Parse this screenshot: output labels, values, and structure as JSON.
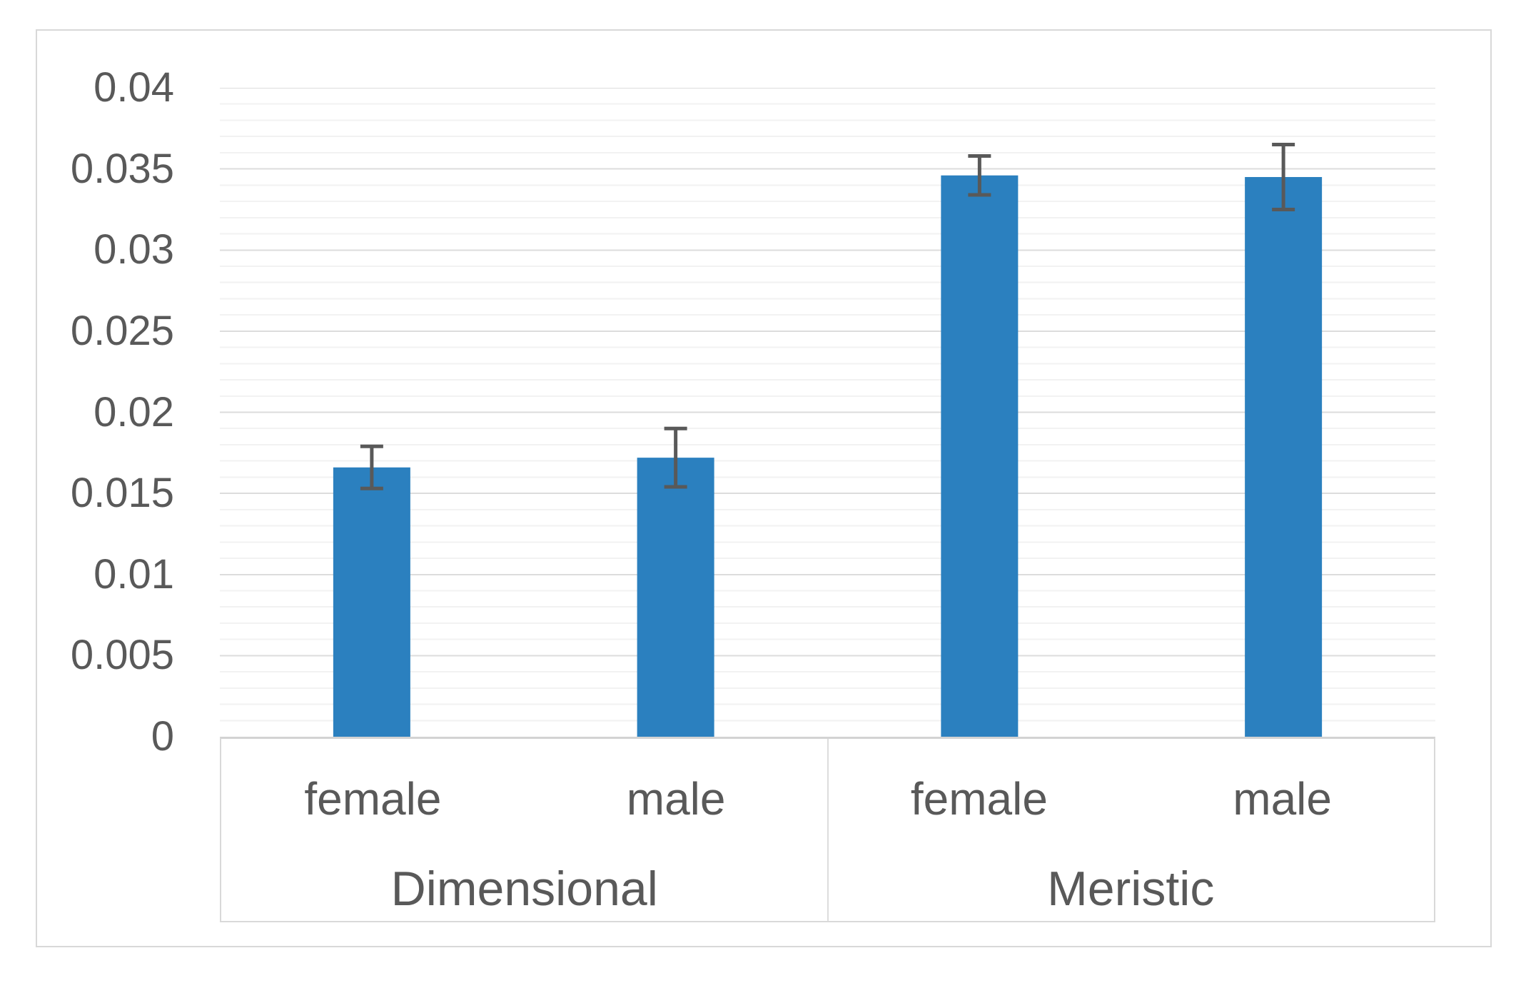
{
  "chart_data": {
    "type": "bar",
    "title": "",
    "xlabel": "",
    "ylabel": "",
    "groups": [
      {
        "label": "Dimensional",
        "categories": [
          "female",
          "male"
        ],
        "values": [
          0.0166,
          0.0172
        ],
        "errors": [
          0.0013,
          0.0018
        ]
      },
      {
        "label": "Meristic",
        "categories": [
          "female",
          "male"
        ],
        "values": [
          0.0346,
          0.0345
        ],
        "errors": [
          0.0012,
          0.002
        ]
      }
    ],
    "ylim": [
      0,
      0.04
    ],
    "ytick_step": 0.005,
    "minor_gridline_step": 0.001,
    "ytick_labels": [
      "0.04",
      "0.035",
      "0.03",
      "0.025",
      "0.02",
      "0.015",
      "0.01",
      "0.005",
      "0"
    ],
    "grid": true,
    "legend": "none",
    "colors": {
      "bar": "#2B80BF",
      "error_bar": "#595959",
      "major_gridline": "#DCDCDC",
      "minor_gridline": "#F2F2F2",
      "axis_line": "#D3D3D3",
      "axis_text": "#595959",
      "chart_border": "#D8D8D8",
      "background": "#FFFFFF"
    }
  }
}
